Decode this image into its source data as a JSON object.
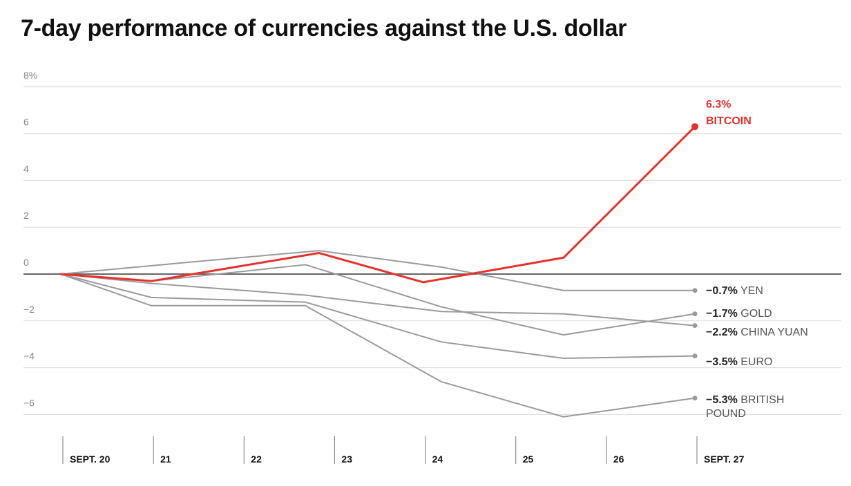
{
  "chart_data": {
    "type": "line",
    "title": "7-day performance of currencies against the U.S. dollar",
    "xlabel": "",
    "ylabel": "",
    "ylim": [
      -7,
      8
    ],
    "y_ticks": [
      {
        "value": 8,
        "label": "8%"
      },
      {
        "value": 6,
        "label": "6"
      },
      {
        "value": 4,
        "label": "4"
      },
      {
        "value": 2,
        "label": "2"
      },
      {
        "value": 0,
        "label": "0"
      },
      {
        "value": -2,
        "label": "−2"
      },
      {
        "value": -4,
        "label": "−4"
      },
      {
        "value": -6,
        "label": "−6"
      }
    ],
    "x_ticks": [
      {
        "value": 0,
        "label": "SEPT. 20"
      },
      {
        "value": 1,
        "label": "21"
      },
      {
        "value": 2,
        "label": "22"
      },
      {
        "value": 3,
        "label": "23"
      },
      {
        "value": 4,
        "label": "24"
      },
      {
        "value": 5,
        "label": "25"
      },
      {
        "value": 6,
        "label": "26"
      },
      {
        "value": 7,
        "label": "SEPT. 27"
      }
    ],
    "grid": true,
    "legend": "none (direct labels at right end)",
    "series": [
      {
        "name": "BITCOIN",
        "value_label": "6.3%",
        "highlight": true,
        "x": [
          0,
          1,
          2.85,
          4,
          5.55,
          7
        ],
        "y": [
          0,
          -0.3,
          0.9,
          -0.35,
          0.7,
          6.3
        ]
      },
      {
        "name": "YEN",
        "value_label": "−0.7%",
        "highlight": false,
        "x": [
          0,
          1.4,
          2.85,
          4.2,
          5.55,
          7
        ],
        "y": [
          0,
          0.5,
          1.0,
          0.3,
          -0.7,
          -0.7
        ]
      },
      {
        "name": "GOLD",
        "value_label": "−1.7%",
        "highlight": false,
        "x": [
          0,
          1,
          2.7,
          4.2,
          5.55,
          7
        ],
        "y": [
          0,
          -0.3,
          0.4,
          -1.4,
          -2.6,
          -1.7
        ]
      },
      {
        "name": "CHINA YUAN",
        "value_label": "−2.2%",
        "highlight": false,
        "x": [
          0,
          1,
          2.7,
          4.2,
          5.55,
          7
        ],
        "y": [
          0,
          -0.4,
          -0.9,
          -1.6,
          -1.7,
          -2.2
        ]
      },
      {
        "name": "EURO",
        "value_label": "−3.5%",
        "highlight": false,
        "x": [
          0,
          1,
          2.7,
          4.2,
          5.55,
          7
        ],
        "y": [
          0,
          -1.0,
          -1.2,
          -2.9,
          -3.6,
          -3.5
        ]
      },
      {
        "name": "BRITISH POUND",
        "value_label": "−5.3%",
        "highlight": false,
        "x": [
          0,
          1,
          2.7,
          4.2,
          5.55,
          7
        ],
        "y": [
          0,
          -1.35,
          -1.35,
          -4.6,
          -6.1,
          -5.3
        ]
      }
    ],
    "colors": {
      "highlight": "#e8302a",
      "other": "#9a9a9a",
      "label_bold": "#222222",
      "label_light": "#555555",
      "grid": "#dcdcdc",
      "axis_zero": "#666666",
      "tick_text": "#888888"
    }
  }
}
